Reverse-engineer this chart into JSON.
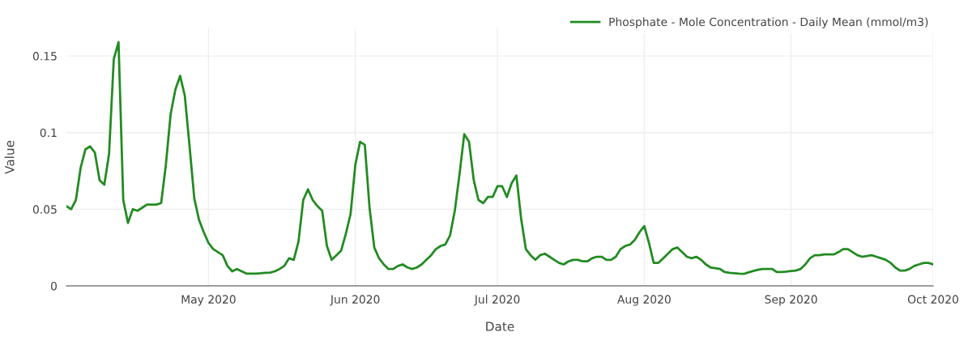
{
  "chart_data": {
    "type": "line",
    "xlabel": "Date",
    "ylabel": "Value",
    "xlim": [
      "2020-04-01",
      "2020-10-01"
    ],
    "xticks": [
      {
        "value": "2020-05-01",
        "label": "May 2020"
      },
      {
        "value": "2020-06-01",
        "label": "Jun 2020"
      },
      {
        "value": "2020-07-01",
        "label": "Jul 2020"
      },
      {
        "value": "2020-08-01",
        "label": "Aug 2020"
      },
      {
        "value": "2020-09-01",
        "label": "Sep 2020"
      },
      {
        "value": "2020-10-01",
        "label": "Oct 2020"
      }
    ],
    "ylim": [
      0,
      0.168
    ],
    "yticks": [
      0,
      0.05,
      0.1,
      0.15
    ],
    "grid": true,
    "legend": "top right",
    "marker": "none",
    "line_style": "solid",
    "series": [
      {
        "name": "Phosphate - Mole Concentration - Daily Mean (mmol/m3)",
        "color": "#228b22",
        "x": [
          "2020-04-01",
          "2020-04-02",
          "2020-04-03",
          "2020-04-04",
          "2020-04-05",
          "2020-04-06",
          "2020-04-07",
          "2020-04-08",
          "2020-04-09",
          "2020-04-10",
          "2020-04-11",
          "2020-04-12",
          "2020-04-13",
          "2020-04-14",
          "2020-04-15",
          "2020-04-16",
          "2020-04-17",
          "2020-04-18",
          "2020-04-19",
          "2020-04-20",
          "2020-04-21",
          "2020-04-22",
          "2020-04-23",
          "2020-04-24",
          "2020-04-25",
          "2020-04-26",
          "2020-04-27",
          "2020-04-28",
          "2020-04-29",
          "2020-04-30",
          "2020-05-01",
          "2020-05-02",
          "2020-05-03",
          "2020-05-04",
          "2020-05-05",
          "2020-05-06",
          "2020-05-07",
          "2020-05-08",
          "2020-05-09",
          "2020-05-10",
          "2020-05-11",
          "2020-05-12",
          "2020-05-13",
          "2020-05-14",
          "2020-05-15",
          "2020-05-16",
          "2020-05-17",
          "2020-05-18",
          "2020-05-19",
          "2020-05-20",
          "2020-05-21",
          "2020-05-22",
          "2020-05-23",
          "2020-05-24",
          "2020-05-25",
          "2020-05-26",
          "2020-05-27",
          "2020-05-28",
          "2020-05-29",
          "2020-05-30",
          "2020-05-31",
          "2020-06-01",
          "2020-06-02",
          "2020-06-03",
          "2020-06-04",
          "2020-06-05",
          "2020-06-06",
          "2020-06-07",
          "2020-06-08",
          "2020-06-09",
          "2020-06-10",
          "2020-06-11",
          "2020-06-12",
          "2020-06-13",
          "2020-06-14",
          "2020-06-15",
          "2020-06-16",
          "2020-06-17",
          "2020-06-18",
          "2020-06-19",
          "2020-06-20",
          "2020-06-21",
          "2020-06-22",
          "2020-06-23",
          "2020-06-24",
          "2020-06-25",
          "2020-06-26",
          "2020-06-27",
          "2020-06-28",
          "2020-06-29",
          "2020-06-30",
          "2020-07-01",
          "2020-07-02",
          "2020-07-03",
          "2020-07-04",
          "2020-07-05",
          "2020-07-06",
          "2020-07-07",
          "2020-07-08",
          "2020-07-09",
          "2020-07-10",
          "2020-07-11",
          "2020-07-12",
          "2020-07-13",
          "2020-07-14",
          "2020-07-15",
          "2020-07-16",
          "2020-07-17",
          "2020-07-18",
          "2020-07-19",
          "2020-07-20",
          "2020-07-21",
          "2020-07-22",
          "2020-07-23",
          "2020-07-24",
          "2020-07-25",
          "2020-07-26",
          "2020-07-27",
          "2020-07-28",
          "2020-07-29",
          "2020-07-30",
          "2020-07-31",
          "2020-08-01",
          "2020-08-02",
          "2020-08-03",
          "2020-08-04",
          "2020-08-05",
          "2020-08-06",
          "2020-08-07",
          "2020-08-08",
          "2020-08-09",
          "2020-08-10",
          "2020-08-11",
          "2020-08-12",
          "2020-08-13",
          "2020-08-14",
          "2020-08-15",
          "2020-08-16",
          "2020-08-17",
          "2020-08-18",
          "2020-08-19",
          "2020-08-20",
          "2020-08-21",
          "2020-08-22",
          "2020-08-23",
          "2020-08-24",
          "2020-08-25",
          "2020-08-26",
          "2020-08-27",
          "2020-08-28",
          "2020-08-29",
          "2020-08-30",
          "2020-08-31",
          "2020-09-01",
          "2020-09-02",
          "2020-09-03",
          "2020-09-04",
          "2020-09-05",
          "2020-09-06",
          "2020-09-07",
          "2020-09-08",
          "2020-09-09",
          "2020-09-10",
          "2020-09-11",
          "2020-09-12",
          "2020-09-13",
          "2020-09-14",
          "2020-09-15",
          "2020-09-16",
          "2020-09-17",
          "2020-09-18",
          "2020-09-19",
          "2020-09-20",
          "2020-09-21",
          "2020-09-22",
          "2020-09-23",
          "2020-09-24",
          "2020-09-25",
          "2020-09-26",
          "2020-09-27",
          "2020-09-28",
          "2020-09-29",
          "2020-09-30",
          "2020-10-01"
        ],
        "values": [
          0.052,
          0.05,
          0.056,
          0.077,
          0.089,
          0.091,
          0.087,
          0.069,
          0.066,
          0.086,
          0.148,
          0.159,
          0.056,
          0.041,
          0.05,
          0.049,
          0.051,
          0.053,
          0.053,
          0.053,
          0.054,
          0.079,
          0.112,
          0.128,
          0.137,
          0.124,
          0.091,
          0.057,
          0.043,
          0.035,
          0.028,
          0.024,
          0.022,
          0.02,
          0.013,
          0.0095,
          0.011,
          0.0095,
          0.008,
          0.008,
          0.008,
          0.0082,
          0.0085,
          0.0087,
          0.0095,
          0.011,
          0.013,
          0.018,
          0.017,
          0.029,
          0.056,
          0.063,
          0.056,
          0.052,
          0.049,
          0.026,
          0.017,
          0.02,
          0.023,
          0.034,
          0.047,
          0.079,
          0.094,
          0.092,
          0.051,
          0.025,
          0.018,
          0.014,
          0.011,
          0.011,
          0.013,
          0.014,
          0.012,
          0.011,
          0.012,
          0.014,
          0.017,
          0.02,
          0.024,
          0.026,
          0.027,
          0.033,
          0.049,
          0.073,
          0.099,
          0.094,
          0.069,
          0.056,
          0.054,
          0.058,
          0.058,
          0.065,
          0.065,
          0.058,
          0.067,
          0.072,
          0.044,
          0.024,
          0.02,
          0.017,
          0.02,
          0.021,
          0.019,
          0.017,
          0.015,
          0.014,
          0.016,
          0.017,
          0.017,
          0.016,
          0.016,
          0.018,
          0.019,
          0.019,
          0.017,
          0.017,
          0.019,
          0.024,
          0.026,
          0.027,
          0.03,
          0.035,
          0.039,
          0.028,
          0.015,
          0.015,
          0.018,
          0.021,
          0.024,
          0.025,
          0.022,
          0.019,
          0.018,
          0.019,
          0.017,
          0.014,
          0.012,
          0.0115,
          0.011,
          0.009,
          0.0085,
          0.0083,
          0.008,
          0.0078,
          0.0088,
          0.0097,
          0.0105,
          0.011,
          0.011,
          0.011,
          0.009,
          0.009,
          0.0093,
          0.0097,
          0.01,
          0.011,
          0.014,
          0.018,
          0.02,
          0.02,
          0.0205,
          0.0205,
          0.0205,
          0.022,
          0.024,
          0.024,
          0.022,
          0.02,
          0.019,
          0.0195,
          0.02,
          0.019,
          0.018,
          0.017,
          0.015,
          0.012,
          0.01,
          0.01,
          0.011,
          0.013,
          0.014,
          0.015,
          0.015,
          0.014
        ]
      }
    ]
  }
}
